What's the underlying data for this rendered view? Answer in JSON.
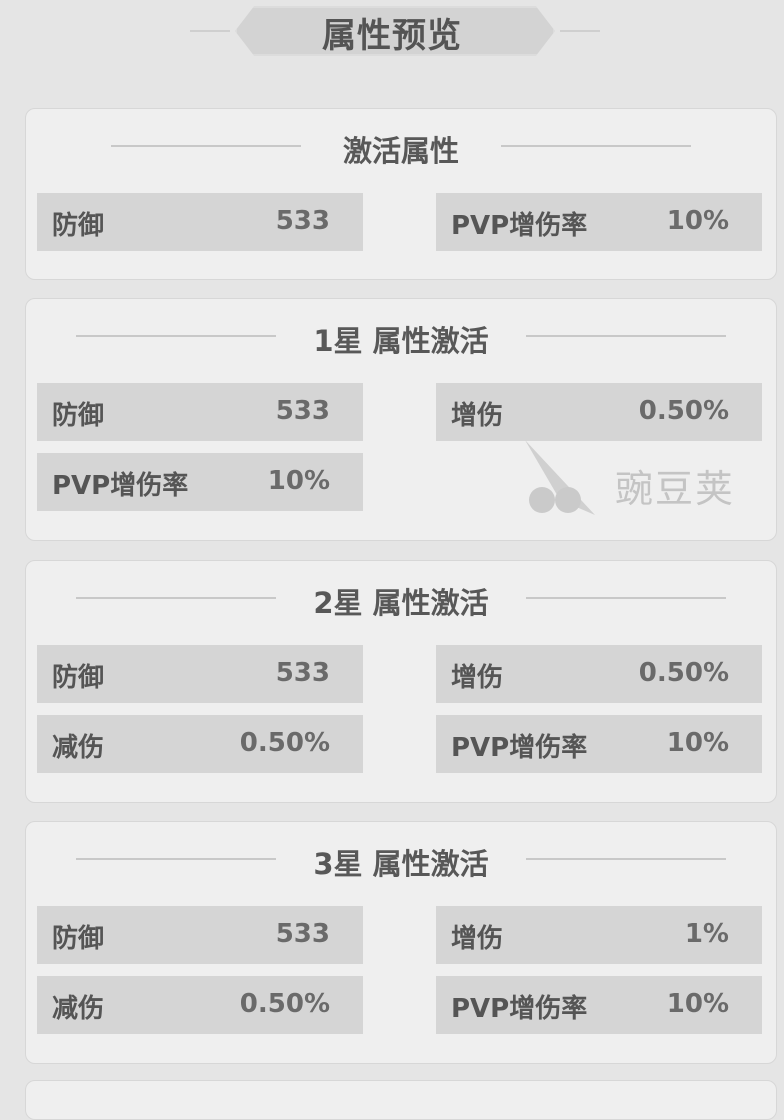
{
  "page_title": "属性预览",
  "sections": [
    {
      "title": "激活属性",
      "rows": [
        [
          {
            "label": "防御",
            "value": "533"
          },
          {
            "label": "PVP增伤率",
            "value": "10%"
          }
        ]
      ]
    },
    {
      "title": "1星 属性激活",
      "rows": [
        [
          {
            "label": "防御",
            "value": "533"
          },
          {
            "label": "增伤",
            "value": "0.50%"
          }
        ],
        [
          {
            "label": "PVP增伤率",
            "value": "10%"
          }
        ]
      ]
    },
    {
      "title": "2星 属性激活",
      "rows": [
        [
          {
            "label": "防御",
            "value": "533"
          },
          {
            "label": "增伤",
            "value": "0.50%"
          }
        ],
        [
          {
            "label": "减伤",
            "value": "0.50%"
          },
          {
            "label": "PVP增伤率",
            "value": "10%"
          }
        ]
      ]
    },
    {
      "title": "3星 属性激活",
      "rows": [
        [
          {
            "label": "防御",
            "value": "533"
          },
          {
            "label": "增伤",
            "value": "1%"
          }
        ],
        [
          {
            "label": "减伤",
            "value": "0.50%"
          },
          {
            "label": "PVP增伤率",
            "value": "10%"
          }
        ]
      ]
    }
  ],
  "watermark": "豌豆荚"
}
